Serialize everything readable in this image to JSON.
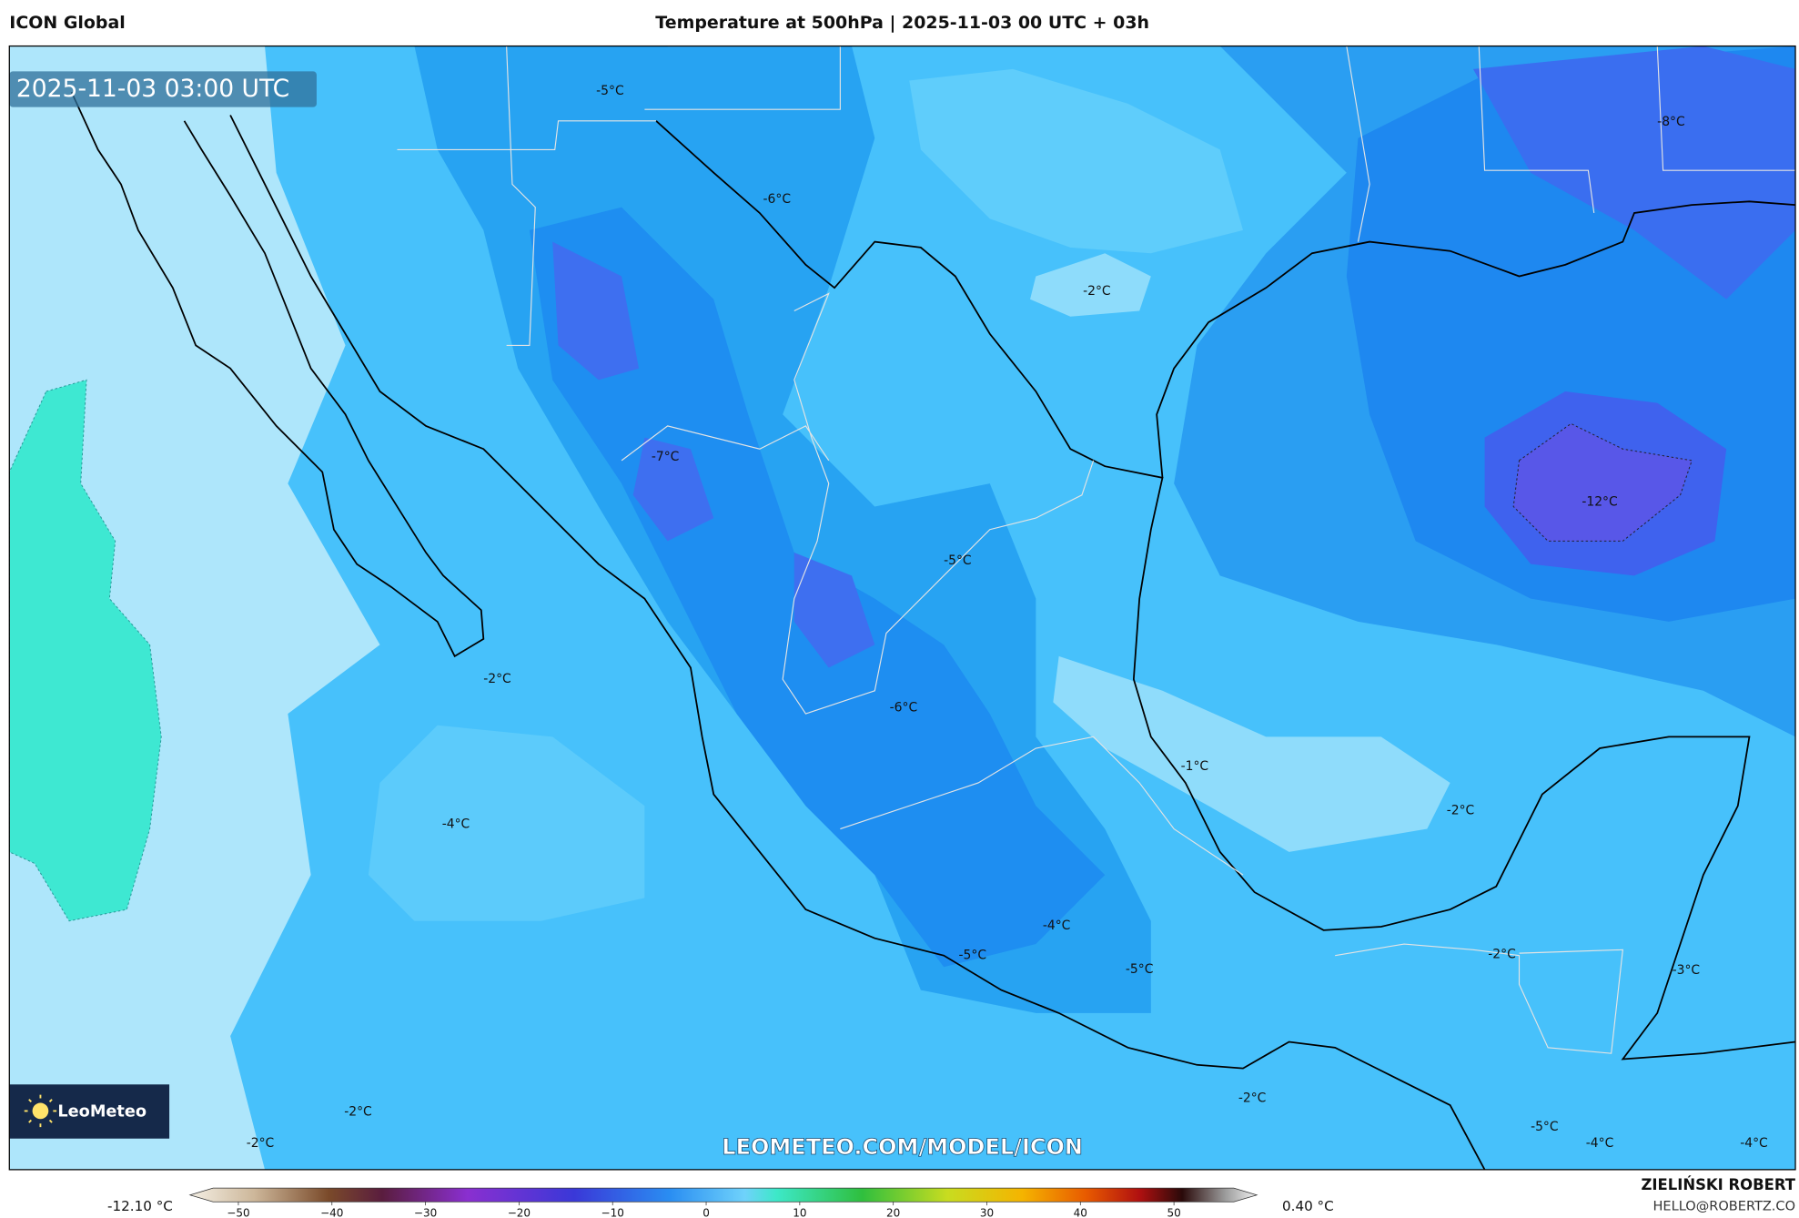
{
  "header": {
    "model": "ICON Global",
    "title": "Temperature at 500hPa | 2025-11-03 00 UTC + 03h"
  },
  "map": {
    "timestamp": "2025-11-03 03:00 UTC",
    "labels": [
      "-5°C",
      "-6°C",
      "-8°C",
      "-2°C",
      "-7°C",
      "-12°C",
      "-5°C",
      "-2°C",
      "-6°C",
      "-1°C",
      "-2°C",
      "-4°C",
      "-4°C",
      "-5°C",
      "-2°C",
      "-5°C",
      "-3°C",
      "-2°C",
      "-2°C",
      "-2°C",
      "-5°C",
      "-4°C",
      "-4°C"
    ],
    "watermark": "LEOMETEO.COM/MODEL/ICON",
    "logo": "LeoMeteo"
  },
  "colorbar": {
    "min_label": "-12.10 °C",
    "max_label": "0.40 °C",
    "ticks": [
      "−50",
      "−40",
      "−30",
      "−20",
      "−10",
      "0",
      "10",
      "20",
      "30",
      "40",
      "50"
    ]
  },
  "footer": {
    "author": "ZIELIŃSKI ROBERT",
    "email": "HELLO@ROBERTZ.CO"
  }
}
